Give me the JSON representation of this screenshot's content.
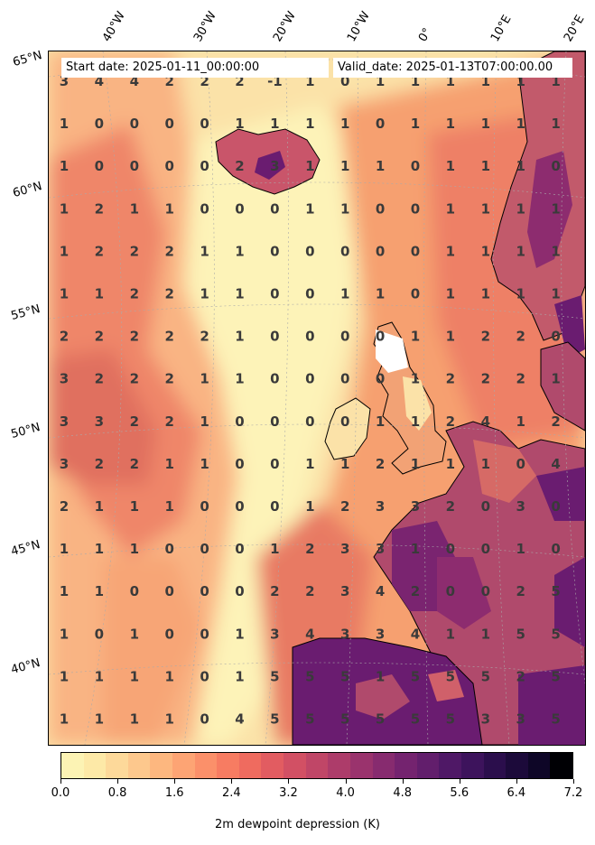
{
  "header": {
    "start_date": "Start date: 2025-01-11_00:00:00",
    "valid_date": "Valid_date: 2025-01-13T07:00:00.00"
  },
  "longitude_labels": [
    "40°W",
    "30°W",
    "20°W",
    "10°W",
    "0°",
    "10°E",
    "20°E"
  ],
  "latitude_labels": [
    "65°N",
    "60°N",
    "55°N",
    "50°N",
    "45°N",
    "40°N"
  ],
  "grid_values": [
    [
      "3",
      "4",
      "4",
      "2",
      "2",
      "2",
      "-1",
      "1",
      "0",
      "1",
      "1",
      "1",
      "1",
      "1",
      "1"
    ],
    [
      "1",
      "0",
      "0",
      "0",
      "0",
      "1",
      "1",
      "1",
      "1",
      "0",
      "1",
      "1",
      "1",
      "1",
      "1"
    ],
    [
      "1",
      "0",
      "0",
      "0",
      "0",
      "2",
      "3",
      "1",
      "1",
      "1",
      "0",
      "1",
      "1",
      "1",
      "0"
    ],
    [
      "1",
      "2",
      "1",
      "1",
      "0",
      "0",
      "0",
      "1",
      "1",
      "0",
      "0",
      "1",
      "1",
      "1",
      "1"
    ],
    [
      "1",
      "2",
      "2",
      "2",
      "1",
      "1",
      "0",
      "0",
      "0",
      "0",
      "0",
      "1",
      "1",
      "1",
      "1"
    ],
    [
      "1",
      "1",
      "2",
      "2",
      "1",
      "1",
      "0",
      "0",
      "1",
      "1",
      "0",
      "1",
      "1",
      "1",
      "1"
    ],
    [
      "2",
      "2",
      "2",
      "2",
      "2",
      "1",
      "0",
      "0",
      "0",
      "0",
      "1",
      "1",
      "2",
      "2",
      "0"
    ],
    [
      "3",
      "2",
      "2",
      "2",
      "1",
      "1",
      "0",
      "0",
      "0",
      "0",
      "1",
      "2",
      "2",
      "2",
      "1"
    ],
    [
      "3",
      "3",
      "2",
      "2",
      "1",
      "0",
      "0",
      "0",
      "0",
      "1",
      "1",
      "2",
      "4",
      "1",
      "2"
    ],
    [
      "3",
      "2",
      "2",
      "1",
      "1",
      "0",
      "0",
      "1",
      "1",
      "2",
      "1",
      "1",
      "1",
      "0",
      "4"
    ],
    [
      "2",
      "1",
      "1",
      "1",
      "0",
      "0",
      "0",
      "1",
      "2",
      "3",
      "3",
      "2",
      "0",
      "3",
      "0"
    ],
    [
      "1",
      "1",
      "1",
      "0",
      "0",
      "0",
      "1",
      "2",
      "3",
      "3",
      "1",
      "0",
      "0",
      "1",
      "0"
    ],
    [
      "1",
      "1",
      "0",
      "0",
      "0",
      "0",
      "2",
      "2",
      "3",
      "4",
      "2",
      "0",
      "0",
      "2",
      "5"
    ],
    [
      "1",
      "0",
      "1",
      "0",
      "0",
      "1",
      "3",
      "4",
      "3",
      "3",
      "4",
      "1",
      "1",
      "5",
      "5"
    ],
    [
      "1",
      "1",
      "1",
      "1",
      "0",
      "1",
      "5",
      "5",
      "5",
      "1",
      "5",
      "5",
      "5",
      "2",
      "5"
    ],
    [
      "1",
      "1",
      "1",
      "1",
      "0",
      "4",
      "5",
      "5",
      "5",
      "5",
      "5",
      "5",
      "3",
      "3",
      "5"
    ]
  ],
  "colorbar": {
    "title": "2m dewpoint depression (K)",
    "min": 0.0,
    "max": 7.2,
    "ticks": [
      "0.0",
      "0.8",
      "1.6",
      "2.4",
      "3.2",
      "4.0",
      "4.8",
      "5.6",
      "6.4",
      "7.2"
    ],
    "colors": [
      "#fcf3b4",
      "#fde9a7",
      "#fdd99a",
      "#fdc88d",
      "#fdb77f",
      "#fda474",
      "#fb906a",
      "#f77c62",
      "#ef6b5f",
      "#e25c61",
      "#d25064",
      "#c04667",
      "#ad3c6a",
      "#9a336d",
      "#872b6f",
      "#74236f",
      "#621e6c",
      "#4f1866",
      "#3d135c",
      "#2b0e4c",
      "#1c0a3a",
      "#0e0627",
      "#000004"
    ]
  },
  "map_colors": {
    "ocean_low": "#fbe2a8",
    "ocean_mid": "#f9a475",
    "ocean_high": "#e47060",
    "land_dry": "#6a1c70",
    "land_mid": "#b04a6c",
    "coastline": "#000000",
    "value_text": "#3a3a3a"
  }
}
